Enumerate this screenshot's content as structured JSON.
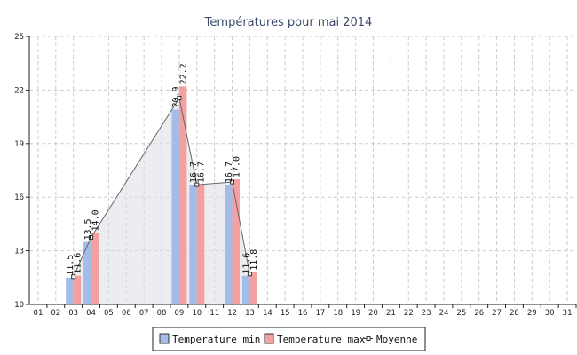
{
  "chart_data": {
    "type": "bar",
    "title": "Températures pour mai 2014",
    "categories": [
      "01",
      "02",
      "03",
      "04",
      "05",
      "06",
      "07",
      "08",
      "09",
      "10",
      "11",
      "12",
      "13",
      "14",
      "15",
      "16",
      "17",
      "18",
      "19",
      "20",
      "21",
      "22",
      "23",
      "24",
      "25",
      "26",
      "27",
      "28",
      "29",
      "30",
      "31"
    ],
    "ylim": [
      10,
      25
    ],
    "yticks": [
      "10",
      "13",
      "16",
      "19",
      "22",
      "25"
    ],
    "grid": true,
    "legend_position": "bottom",
    "series": [
      {
        "name": "Temperature min",
        "type": "bar",
        "color": "#a3bde8",
        "values": [
          null,
          null,
          11.5,
          13.5,
          null,
          null,
          null,
          null,
          20.9,
          16.7,
          null,
          16.7,
          11.6,
          null,
          null,
          null,
          null,
          null,
          null,
          null,
          null,
          null,
          null,
          null,
          null,
          null,
          null,
          null,
          null,
          null,
          null
        ],
        "labels": [
          null,
          null,
          "11.5",
          "13.5",
          null,
          null,
          null,
          null,
          "20.9",
          "16.7",
          null,
          "16.7",
          "11.6",
          null,
          null,
          null,
          null,
          null,
          null,
          null,
          null,
          null,
          null,
          null,
          null,
          null,
          null,
          null,
          null,
          null,
          null
        ]
      },
      {
        "name": "Temperature max",
        "type": "bar",
        "color": "#f4a0a0",
        "values": [
          null,
          null,
          11.6,
          14.0,
          null,
          null,
          null,
          null,
          22.2,
          16.7,
          null,
          17.0,
          11.8,
          null,
          null,
          null,
          null,
          null,
          null,
          null,
          null,
          null,
          null,
          null,
          null,
          null,
          null,
          null,
          null,
          null,
          null
        ],
        "labels": [
          null,
          null,
          "11.6",
          "14.0",
          null,
          null,
          null,
          null,
          "22.2",
          "16.7",
          null,
          "17.0",
          "11.8",
          null,
          null,
          null,
          null,
          null,
          null,
          null,
          null,
          null,
          null,
          null,
          null,
          null,
          null,
          null,
          null,
          null,
          null
        ]
      },
      {
        "name": "Moyenne",
        "type": "area-line",
        "color": "#666666",
        "fill": "#dcdfe4",
        "values": [
          null,
          null,
          11.55,
          13.75,
          null,
          null,
          null,
          null,
          21.55,
          16.7,
          null,
          16.85,
          11.7,
          null,
          null,
          null,
          null,
          null,
          null,
          null,
          null,
          null,
          null,
          null,
          null,
          null,
          null,
          null,
          null,
          null,
          null
        ]
      }
    ]
  }
}
